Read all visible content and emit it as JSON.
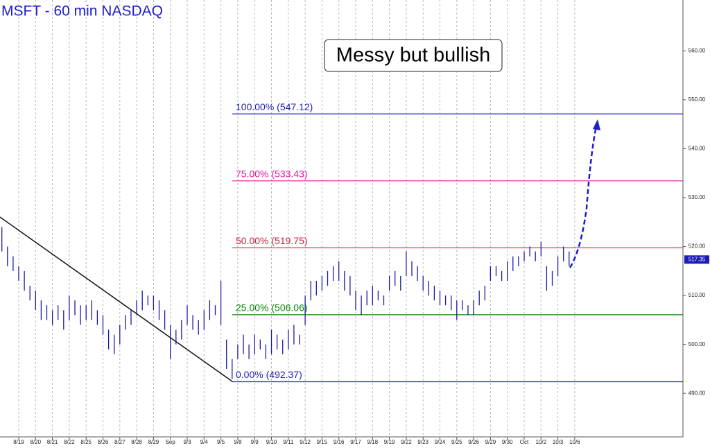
{
  "chart_data": {
    "type": "hilo",
    "title": "MSFT - 60 min  NASDAQ",
    "annotation": "Messy but bullish",
    "color": "#1a1aa8",
    "categories": [
      null,
      null,
      null,
      "8/19",
      null,
      null,
      "8/20",
      null,
      null,
      "8/21",
      null,
      null,
      "8/22",
      null,
      null,
      "8/25",
      null,
      null,
      "8/26",
      null,
      null,
      "8/27",
      null,
      null,
      "8/28",
      null,
      null,
      "8/29",
      null,
      null,
      "Sep",
      null,
      null,
      "9/3",
      null,
      null,
      "9/4",
      null,
      null,
      "9/5",
      null,
      null,
      "9/8",
      null,
      null,
      "9/9",
      null,
      null,
      "9/10",
      null,
      null,
      "9/11",
      null,
      null,
      "9/12",
      null,
      null,
      "9/15",
      null,
      null,
      "9/16",
      null,
      null,
      "9/17",
      null,
      null,
      "9/18",
      null,
      null,
      "9/19",
      null,
      null,
      "9/22",
      null,
      null,
      "9/23",
      null,
      null,
      "9/24",
      null,
      null,
      "9/25",
      null,
      null,
      "9/26",
      null,
      null,
      "9/29",
      null,
      null,
      "9/30",
      null,
      null,
      "Oct",
      null,
      null,
      "10/2",
      null,
      null,
      "10/3",
      null,
      null,
      "10/6"
    ],
    "high": [
      524,
      520,
      518,
      516,
      515,
      512,
      511,
      509,
      508,
      507,
      508,
      507,
      510,
      509,
      508,
      508,
      509,
      507,
      506,
      503,
      502,
      504,
      506,
      507,
      509,
      511,
      510,
      510,
      509,
      507,
      504,
      503,
      505,
      508,
      506,
      505,
      507,
      509,
      508,
      513,
      501,
      497,
      500,
      502,
      500,
      502,
      501,
      500,
      503,
      502,
      501,
      503,
      504,
      502,
      510,
      513,
      513,
      514,
      515,
      516,
      517,
      515,
      514,
      511,
      510,
      511,
      512,
      511,
      510,
      514,
      515,
      514,
      519,
      517,
      516,
      514,
      513,
      512,
      511,
      510,
      510,
      509,
      509,
      508,
      509,
      511,
      512,
      516,
      516,
      515,
      517,
      518,
      518,
      519,
      520,
      519,
      521,
      516,
      515,
      518,
      520,
      519,
      null
    ],
    "low": [
      519,
      516,
      515,
      513,
      511,
      509,
      507,
      505,
      505,
      504,
      505,
      503,
      505,
      506,
      504,
      505,
      505,
      504,
      502,
      499,
      498,
      500,
      503,
      504,
      506,
      507,
      508,
      507,
      505,
      503,
      497,
      500,
      501,
      504,
      503,
      502,
      503,
      505,
      506,
      504,
      495,
      493,
      497,
      498,
      497,
      498,
      499,
      497,
      498,
      499,
      498,
      499,
      500,
      500,
      504,
      509,
      510,
      511,
      512,
      513,
      513,
      511,
      510,
      507,
      506,
      508,
      508,
      509,
      508,
      511,
      512,
      511,
      514,
      514,
      513,
      511,
      510,
      509,
      508,
      508,
      507,
      505,
      507,
      506,
      506,
      508,
      509,
      513,
      514,
      513,
      513,
      515,
      516,
      517,
      518,
      517,
      518,
      511,
      512,
      514,
      517,
      516,
      null
    ],
    "levels": [
      {
        "label": "100.00% (547.12)",
        "value": 547.12,
        "color": "#1c1cb4"
      },
      {
        "label": "75.00% (533.43)",
        "value": 533.43,
        "color": "#e0189c"
      },
      {
        "label": "50.00% (519.75)",
        "value": 519.75,
        "color": "#d02040"
      },
      {
        "label": "25.00% (506.06)",
        "value": 506.06,
        "color": "#0a8a0a"
      },
      {
        "label": "0.00% (492.37)",
        "value": 492.37,
        "color": "#1c1cb4"
      }
    ],
    "last_price": 517.35,
    "ylim": [
      481.1,
      570.4
    ],
    "yticks": [
      {
        "value": 490,
        "label": "490.00"
      },
      {
        "value": 500,
        "label": "500.00"
      },
      {
        "value": 510,
        "label": "510.00"
      },
      {
        "value": 520,
        "label": "520.00"
      },
      {
        "value": 530,
        "label": "530.00"
      },
      {
        "value": 540,
        "label": "540.00"
      },
      {
        "value": 550,
        "label": "550.00"
      },
      {
        "value": 560,
        "label": "560.00"
      }
    ],
    "grid": true
  }
}
